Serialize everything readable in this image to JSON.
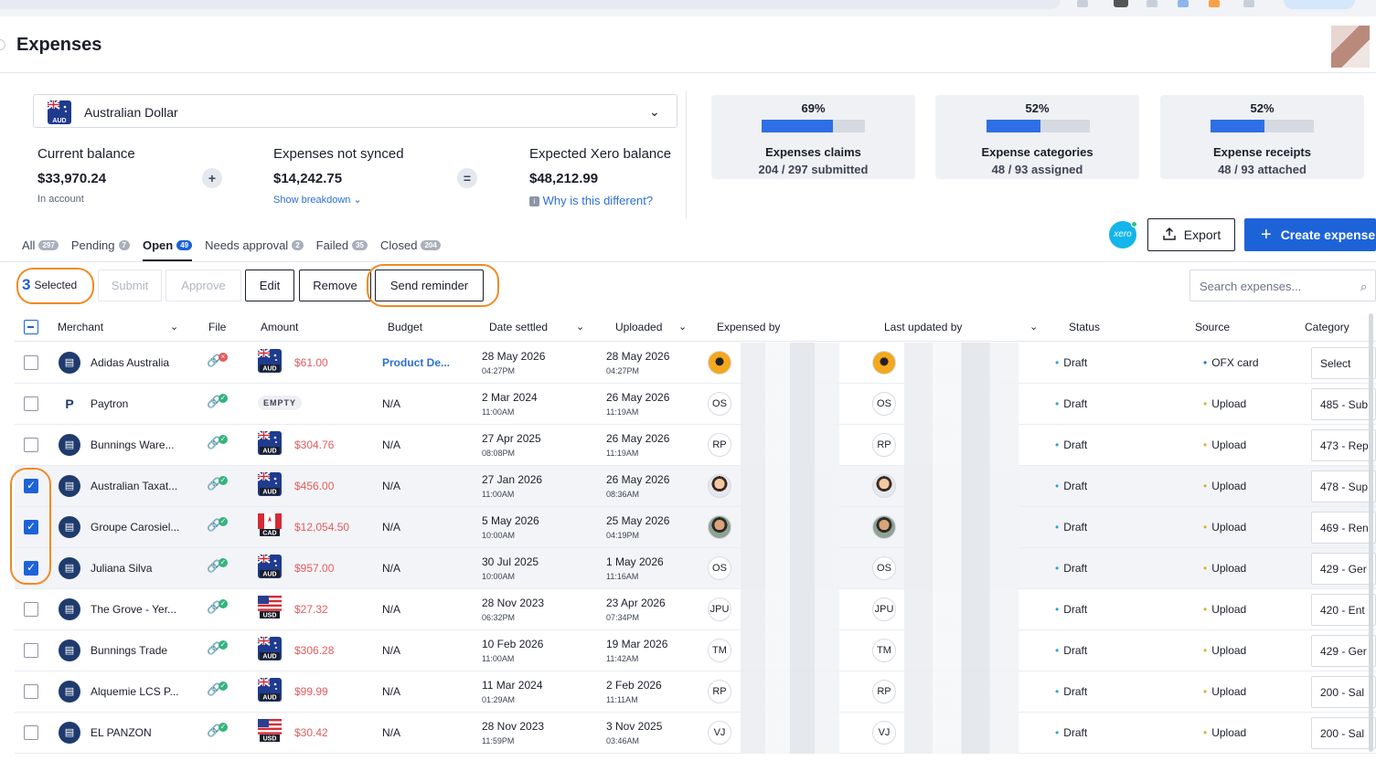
{
  "header": {
    "title": "Expenses"
  },
  "currency": {
    "code": "AUD",
    "name": "Australian Dollar"
  },
  "balances": {
    "current_label": "Current balance",
    "current_value": "$33,970.24",
    "current_sub": "In account",
    "plus": "+",
    "not_synced_label": "Expenses not synced",
    "not_synced_value": "$14,242.75",
    "breakdown_link": "Show breakdown",
    "equals": "=",
    "expected_label": "Expected Xero balance",
    "expected_value": "$48,212.99",
    "why_link": "Why is this different?"
  },
  "stats": [
    {
      "pct": "69%",
      "fraction": 0.69,
      "label": "Expenses claims",
      "sub": "204 / 297 submitted"
    },
    {
      "pct": "52%",
      "fraction": 0.52,
      "label": "Expense categories",
      "sub": "48 / 93 assigned"
    },
    {
      "pct": "52%",
      "fraction": 0.52,
      "label": "Expense receipts",
      "sub": "48 / 93 attached"
    }
  ],
  "actions": {
    "xero": "xero",
    "export": "Export",
    "create": "Create expense"
  },
  "tabs": [
    {
      "label": "All",
      "count": "297"
    },
    {
      "label": "Pending",
      "count": "7"
    },
    {
      "label": "Open",
      "count": "49"
    },
    {
      "label": "Needs approval",
      "count": "2"
    },
    {
      "label": "Failed",
      "count": "35"
    },
    {
      "label": "Closed",
      "count": "204"
    }
  ],
  "toolbar": {
    "selected_count": "3",
    "selected_label": "Selected",
    "submit": "Submit",
    "approve": "Approve",
    "edit": "Edit",
    "remove": "Remove",
    "send_reminder": "Send reminder",
    "search_placeholder": "Search expenses..."
  },
  "columns": [
    "Merchant",
    "File",
    "Amount",
    "Budget",
    "Date settled",
    "Uploaded",
    "Expensed by",
    "Last updated by",
    "Status",
    "Source",
    "Category"
  ],
  "rows": [
    {
      "merchant": "Adidas Australia",
      "file_ok": false,
      "currency": "AUD",
      "amount": "$61.00",
      "budget": "Product De...",
      "settled": "28 May 2026",
      "settled_t": "04:27PM",
      "uploaded": "28 May 2026",
      "uploaded_t": "04:27PM",
      "av": "",
      "status": "Draft",
      "source": "OFX card",
      "category": "Select",
      "checked": false
    },
    {
      "merchant": "Paytron",
      "file_ok": true,
      "currency": "",
      "amount": "EMPTY",
      "budget": "N/A",
      "settled": "2 Mar 2024",
      "settled_t": "11:00AM",
      "uploaded": "26 May 2026",
      "uploaded_t": "11:19AM",
      "av": "OS",
      "status": "Draft",
      "source": "Upload",
      "category": "485 - Sub",
      "checked": false
    },
    {
      "merchant": "Bunnings Ware...",
      "file_ok": true,
      "currency": "AUD",
      "amount": "$304.76",
      "budget": "N/A",
      "settled": "27 Apr 2025",
      "settled_t": "08:08PM",
      "uploaded": "26 May 2026",
      "uploaded_t": "11:19AM",
      "av": "RP",
      "status": "Draft",
      "source": "Upload",
      "category": "473 - Rep",
      "checked": false
    },
    {
      "merchant": "Australian Taxat...",
      "file_ok": true,
      "currency": "AUD",
      "amount": "$456.00",
      "budget": "N/A",
      "settled": "27 Jan 2026",
      "settled_t": "11:00AM",
      "uploaded": "26 May 2026",
      "uploaded_t": "08:36AM",
      "av": "",
      "status": "Draft",
      "source": "Upload",
      "category": "478 - Sup",
      "checked": true
    },
    {
      "merchant": "Groupe Carosiel...",
      "file_ok": true,
      "currency": "CAD",
      "amount": "$12,054.50",
      "budget": "N/A",
      "settled": "5 May 2026",
      "settled_t": "10:00AM",
      "uploaded": "25 May 2026",
      "uploaded_t": "04:19PM",
      "av": "",
      "status": "Draft",
      "source": "Upload",
      "category": "469 - Ren",
      "checked": true
    },
    {
      "merchant": "Juliana Silva",
      "file_ok": true,
      "currency": "AUD",
      "amount": "$957.00",
      "budget": "N/A",
      "settled": "30 Jul 2025",
      "settled_t": "10:00AM",
      "uploaded": "1 May 2026",
      "uploaded_t": "11:16AM",
      "av": "OS",
      "status": "Draft",
      "source": "Upload",
      "category": "429 - Ger",
      "checked": true
    },
    {
      "merchant": "The Grove - Yer...",
      "file_ok": true,
      "currency": "USD",
      "amount": "$27.32",
      "budget": "N/A",
      "settled": "28 Nov 2023",
      "settled_t": "06:32PM",
      "uploaded": "23 Apr 2026",
      "uploaded_t": "07:34PM",
      "av": "JPU",
      "status": "Draft",
      "source": "Upload",
      "category": "420 - Ent",
      "checked": false
    },
    {
      "merchant": "Bunnings Trade",
      "file_ok": true,
      "currency": "AUD",
      "amount": "$306.28",
      "budget": "N/A",
      "settled": "10 Feb 2026",
      "settled_t": "11:00AM",
      "uploaded": "19 Mar 2026",
      "uploaded_t": "11:42AM",
      "av": "TM",
      "status": "Draft",
      "source": "Upload",
      "category": "429 - Ger",
      "checked": false
    },
    {
      "merchant": "Alquemie LCS P...",
      "file_ok": true,
      "currency": "AUD",
      "amount": "$99.99",
      "budget": "N/A",
      "settled": "11 Mar 2024",
      "settled_t": "01:29AM",
      "uploaded": "2 Feb 2026",
      "uploaded_t": "11:11AM",
      "av": "RP",
      "status": "Draft",
      "source": "Upload",
      "category": "200 - Sal",
      "checked": false
    },
    {
      "merchant": "EL PANZON",
      "file_ok": true,
      "currency": "USD",
      "amount": "$30.42",
      "budget": "N/A",
      "settled": "28 Nov 2023",
      "settled_t": "11:59PM",
      "uploaded": "3 Nov 2025",
      "uploaded_t": "03:46AM",
      "av": "VJ",
      "status": "Draft",
      "source": "Upload",
      "category": "200 - Sal",
      "checked": false
    }
  ]
}
